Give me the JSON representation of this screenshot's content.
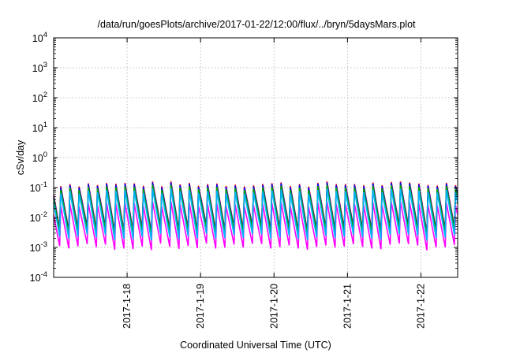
{
  "chart_data": {
    "type": "line",
    "title": "/data/run/goesPlots/archive/2017-01-22/12:00/flux/../bryn/5daysMars.plot",
    "xlabel": "Coordinated Universal Time (UTC)",
    "ylabel": "cSv/day",
    "yscale": "log",
    "ylim": [
      0.0001,
      10000
    ],
    "y_ticks": [
      {
        "base": "10",
        "exp": "-4",
        "value": 0.0001
      },
      {
        "base": "10",
        "exp": "-3",
        "value": 0.001
      },
      {
        "base": "10",
        "exp": "-2",
        "value": 0.01
      },
      {
        "base": "10",
        "exp": "-1",
        "value": 0.1
      },
      {
        "base": "10",
        "exp": "0",
        "value": 1
      },
      {
        "base": "10",
        "exp": "1",
        "value": 10
      },
      {
        "base": "10",
        "exp": "2",
        "value": 100
      },
      {
        "base": "10",
        "exp": "3",
        "value": 1000
      },
      {
        "base": "10",
        "exp": "4",
        "value": 10000
      }
    ],
    "xlim": [
      "2017-01-17T00:00",
      "2017-01-22T12:00"
    ],
    "x_ticks": [
      "2017-1-18",
      "2017-1-19",
      "2017-1-20",
      "2017-1-21",
      "2017-1-22"
    ],
    "x_tick_values": [
      "2017-01-18",
      "2017-01-19",
      "2017-01-20",
      "2017-01-21",
      "2017-01-22"
    ],
    "grid": true,
    "pattern": {
      "period_hours": 3,
      "series_levels": [
        {
          "color": "#ff0000",
          "peak": 0.13,
          "trough": 0.0042
        },
        {
          "color": "#0000ff",
          "peak": 0.12,
          "trough": 0.0038
        },
        {
          "color": "#00aa00",
          "peak": 0.1,
          "trough": 0.0034
        },
        {
          "color": "#ff00ff",
          "peak": 0.028,
          "trough": 0.00105
        },
        {
          "color": "#00b4ff",
          "peak": 0.075,
          "trough": 0.0022
        }
      ]
    }
  }
}
